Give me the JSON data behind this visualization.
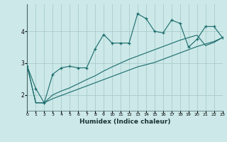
{
  "xlabel": "Humidex (Indice chaleur)",
  "x_values": [
    0,
    1,
    2,
    3,
    4,
    5,
    6,
    7,
    8,
    9,
    10,
    11,
    12,
    13,
    14,
    15,
    16,
    17,
    18,
    19,
    20,
    21,
    22,
    23
  ],
  "line_main": [
    2.9,
    2.2,
    1.75,
    2.65,
    2.85,
    2.9,
    2.85,
    2.85,
    3.45,
    3.9,
    3.63,
    3.63,
    3.63,
    4.55,
    4.4,
    4.0,
    3.95,
    4.35,
    4.25,
    3.5,
    3.75,
    4.15,
    4.15,
    3.8
  ],
  "line_upper": [
    2.9,
    1.75,
    1.75,
    2.0,
    2.12,
    2.22,
    2.35,
    2.48,
    2.6,
    2.75,
    2.88,
    3.0,
    3.12,
    3.22,
    3.32,
    3.42,
    3.52,
    3.62,
    3.72,
    3.8,
    3.88,
    3.55,
    3.65,
    3.8
  ],
  "line_lower": [
    2.9,
    1.75,
    1.75,
    1.88,
    1.98,
    2.08,
    2.18,
    2.28,
    2.38,
    2.48,
    2.58,
    2.68,
    2.78,
    2.88,
    2.95,
    3.02,
    3.12,
    3.22,
    3.32,
    3.42,
    3.52,
    3.6,
    3.68,
    3.8
  ],
  "background_color": "#cce8e8",
  "grid_color": "#aacccc",
  "line_color": "#1a6b6b",
  "yticks": [
    2,
    3,
    4
  ],
  "ylim": [
    1.5,
    4.85
  ],
  "xlim": [
    0,
    23
  ]
}
